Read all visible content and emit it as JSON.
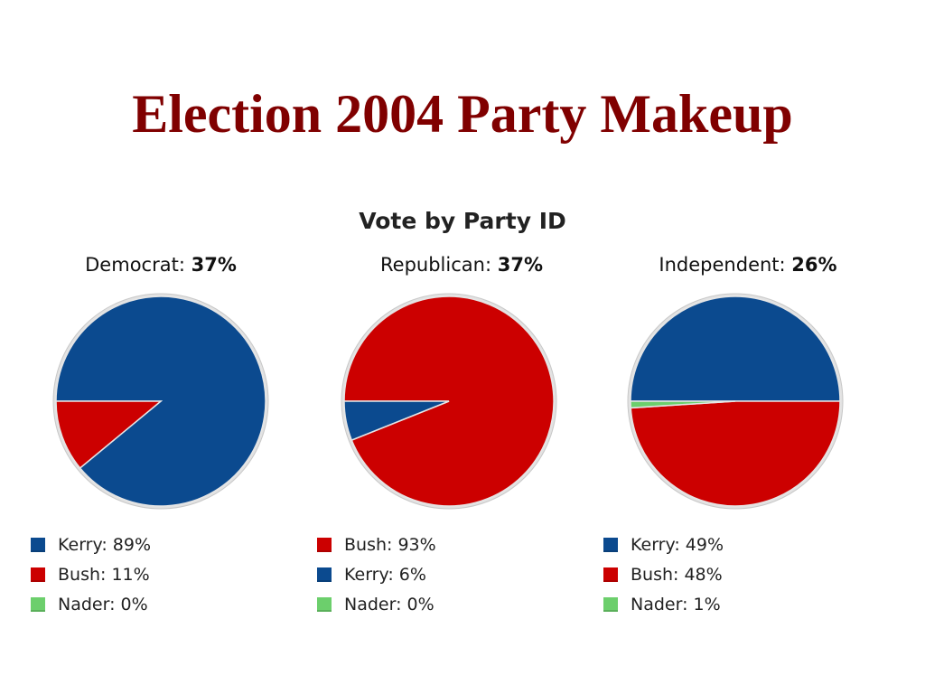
{
  "slide": {
    "title": "Election 2004 Party Makeup"
  },
  "colors": {
    "kerry": "#0b4a8f",
    "bush": "#cc0000",
    "nader": "#6ccf6c",
    "title": "#800000"
  },
  "chart_data": {
    "type": "pie",
    "title": "Vote by Party ID",
    "pies": [
      {
        "group": "Democrat:",
        "share": "37%",
        "slices": [
          {
            "label": "Kerry: 89%",
            "name": "Kerry",
            "value": 89,
            "color": "#0b4a8f"
          },
          {
            "label": "Bush: 11%",
            "name": "Bush",
            "value": 11,
            "color": "#cc0000"
          },
          {
            "label": "Nader: 0%",
            "name": "Nader",
            "value": 0,
            "color": "#6ccf6c"
          }
        ]
      },
      {
        "group": "Republican:",
        "share": "37%",
        "slices": [
          {
            "label": "Bush: 93%",
            "name": "Bush",
            "value": 93,
            "color": "#cc0000"
          },
          {
            "label": "Kerry: 6%",
            "name": "Kerry",
            "value": 6,
            "color": "#0b4a8f"
          },
          {
            "label": "Nader: 0%",
            "name": "Nader",
            "value": 0,
            "color": "#6ccf6c"
          }
        ]
      },
      {
        "group": "Independent:",
        "share": "26%",
        "slices": [
          {
            "label": "Kerry: 49%",
            "name": "Kerry",
            "value": 49,
            "color": "#0b4a8f"
          },
          {
            "label": "Bush: 48%",
            "name": "Bush",
            "value": 48,
            "color": "#cc0000"
          },
          {
            "label": "Nader: 1%",
            "name": "Nader",
            "value": 1,
            "color": "#6ccf6c"
          }
        ]
      }
    ]
  }
}
